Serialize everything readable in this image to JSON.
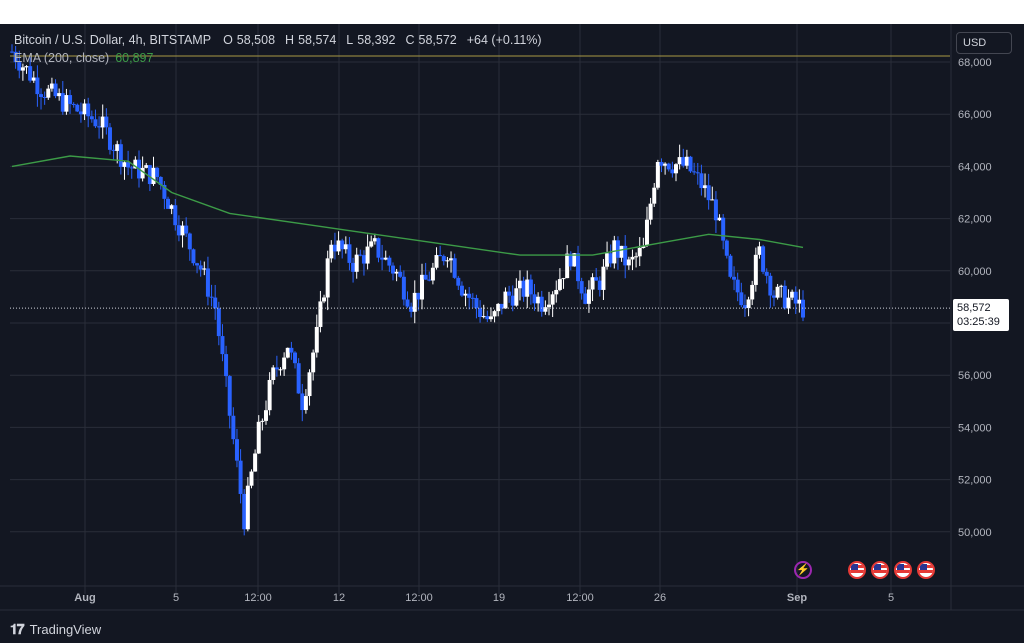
{
  "header": {
    "symbol": "Bitcoin / U.S. Dollar, 4h, BITSTAMP",
    "open_label": "O",
    "open": "58,508",
    "high_label": "H",
    "high": "58,574",
    "low_label": "L",
    "low": "58,392",
    "close_label": "C",
    "close": "58,572",
    "change": "+64 (+0.11%)"
  },
  "indicator": {
    "name": "EMA (200, close)",
    "value": "60,897"
  },
  "currency": "USD",
  "last_price": {
    "price": "58,572",
    "countdown": "03:25:39"
  },
  "branding": "TradingView",
  "colors": {
    "background": "#131722",
    "up_candle": "#ffffff",
    "down_candle": "#2962ff",
    "ema_line": "#3c9b47",
    "grid": "#2a2e39",
    "text": "#d1d4dc"
  },
  "events": {
    "icons": [
      "bolt-icon",
      "us-flag-icon",
      "us-flag-icon",
      "us-flag-icon",
      "us-flag-icon"
    ]
  },
  "chart_data": {
    "type": "candlestick",
    "y_axis_ticks": [
      "68,000",
      "66,000",
      "64,000",
      "62,000",
      "60,000",
      "56,000",
      "54,000",
      "52,000",
      "50,000"
    ],
    "x_axis_ticks": [
      "Aug",
      "5",
      "12:00",
      "12",
      "12:00",
      "19",
      "12:00",
      "26",
      "Sep",
      "5"
    ],
    "y_range": [
      48000,
      69500
    ],
    "series": [
      {
        "name": "Bitcoin / U.S. Dollar",
        "close_path": [
          [
            0,
            68400
          ],
          [
            4,
            67000
          ],
          [
            8,
            66300
          ],
          [
            12,
            65700
          ],
          [
            16,
            64000
          ],
          [
            20,
            63600
          ],
          [
            23,
            61800
          ],
          [
            26,
            60100
          ],
          [
            28,
            58600
          ],
          [
            30,
            54500
          ],
          [
            32,
            50500
          ],
          [
            34,
            53800
          ],
          [
            36,
            56000
          ],
          [
            38,
            57200
          ],
          [
            40,
            55000
          ],
          [
            42,
            57500
          ],
          [
            44,
            61200
          ],
          [
            47,
            60300
          ],
          [
            50,
            60900
          ],
          [
            53,
            59900
          ],
          [
            55,
            58800
          ],
          [
            57,
            59600
          ],
          [
            60,
            60800
          ],
          [
            62,
            59400
          ],
          [
            64,
            58600
          ],
          [
            66,
            58000
          ],
          [
            68,
            59000
          ],
          [
            71,
            59300
          ],
          [
            73,
            58800
          ],
          [
            75,
            59500
          ],
          [
            77,
            60600
          ],
          [
            79,
            59100
          ],
          [
            81,
            59600
          ],
          [
            83,
            60900
          ],
          [
            85,
            60200
          ],
          [
            87,
            60800
          ],
          [
            89,
            64400
          ],
          [
            91,
            64100
          ],
          [
            93,
            64000
          ],
          [
            95,
            63300
          ],
          [
            97,
            62300
          ],
          [
            99,
            59500
          ],
          [
            101,
            58900
          ],
          [
            103,
            60700
          ],
          [
            105,
            59100
          ],
          [
            107,
            58900
          ],
          [
            109,
            58572
          ]
        ]
      },
      {
        "name": "EMA (200, close)",
        "values_path": [
          [
            0,
            64000
          ],
          [
            8,
            64400
          ],
          [
            16,
            64200
          ],
          [
            22,
            63000
          ],
          [
            30,
            62200
          ],
          [
            40,
            61800
          ],
          [
            50,
            61400
          ],
          [
            60,
            61000
          ],
          [
            70,
            60600
          ],
          [
            80,
            60600
          ],
          [
            90,
            61100
          ],
          [
            96,
            61400
          ],
          [
            103,
            61200
          ],
          [
            109,
            60897
          ]
        ]
      }
    ]
  }
}
